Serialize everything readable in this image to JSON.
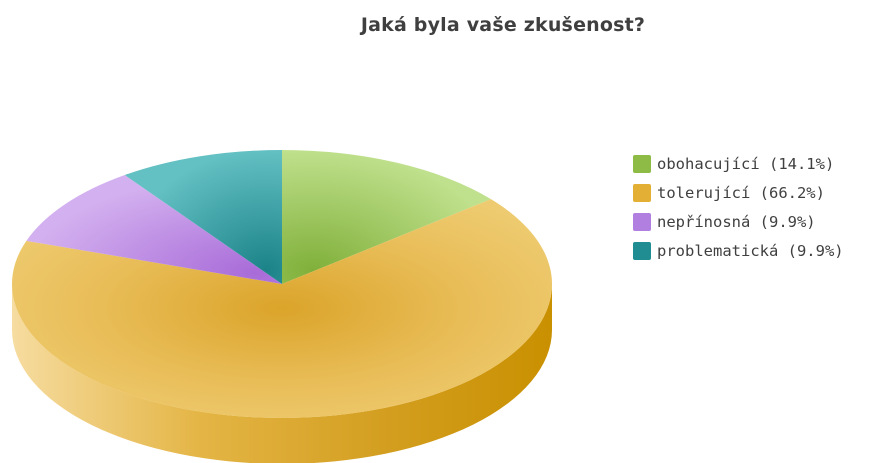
{
  "chart_data": {
    "type": "pie",
    "title": "Jaká byla vaše zkušenost?",
    "categories": [
      "obohacující",
      "tolerující",
      "nepřínosná",
      "problematická"
    ],
    "values": [
      14.1,
      66.2,
      9.9,
      9.9
    ],
    "legend": {
      "position": "right",
      "entries": [
        "obohacující (14.1%)",
        "tolerující (66.2%)",
        "nepřínosná (9.9%)",
        "problematická (9.9%)"
      ]
    },
    "colors": [
      "#8dbb45",
      "#e3b035",
      "#b17fdf",
      "#1f8d92"
    ],
    "style": "3d"
  }
}
